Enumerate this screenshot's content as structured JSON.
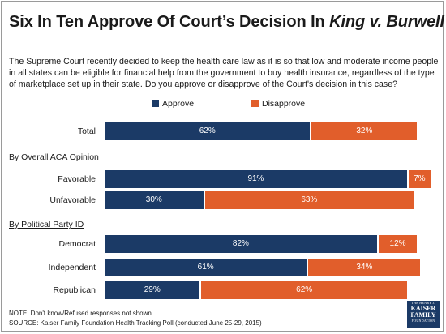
{
  "title_main": "Six In Ten Approve Of Court’s Decision In ",
  "title_case": "King v. Burwell",
  "question": "The Supreme Court recently decided to keep the health care law as it is so that low and moderate income people in all states can be eligible for financial help from the government to buy health insurance, regardless of the type of marketplace set up in their state. Do you approve or disapprove of the Court's decision in this case?",
  "colors": {
    "approve": "#1b3a66",
    "disapprove": "#e15e2b"
  },
  "sections": {
    "aca": "By Overall ACA Opinion",
    "party": "By Political Party ID"
  },
  "chart_data": {
    "type": "bar",
    "orientation": "horizontal",
    "stacked": true,
    "categories": [
      "Total",
      "Favorable",
      "Unfavorable",
      "Democrat",
      "Independent",
      "Republican"
    ],
    "series": [
      {
        "name": "Approve",
        "values": [
          62,
          91,
          30,
          82,
          61,
          29
        ]
      },
      {
        "name": "Disapprove",
        "values": [
          32,
          7,
          63,
          12,
          34,
          62
        ]
      }
    ],
    "value_labels": {
      "Approve": [
        "62%",
        "91%",
        "30%",
        "82%",
        "61%",
        "29%"
      ],
      "Disapprove": [
        "32%",
        "7%",
        "63%",
        "12%",
        "34%",
        "62%"
      ]
    },
    "xlim": [
      0,
      100
    ],
    "legend_position": "top",
    "grid": false
  },
  "notes": {
    "note": "NOTE: Don't know/Refused responses not shown.",
    "source": "SOURCE: Kaiser Family Foundation Health Tracking Poll (conducted June 25-29, 2015)"
  },
  "logo": {
    "line0": "THE HENRY J.",
    "line1": "KAISER",
    "line2": "FAMILY",
    "line3": "FOUNDATION"
  }
}
